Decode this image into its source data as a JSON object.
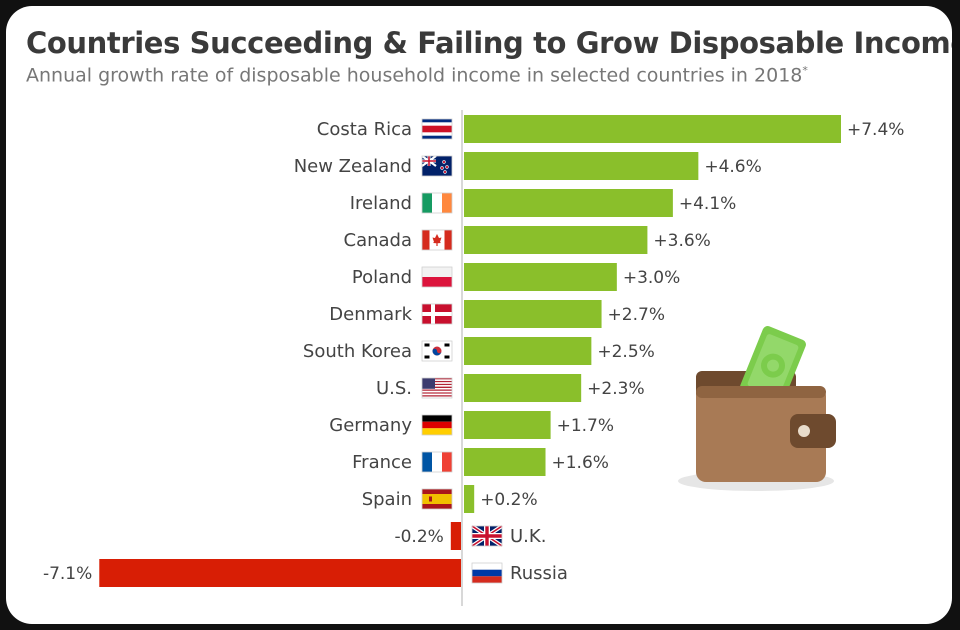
{
  "title": "Countries Succeeding & Failing to Grow Disposable Incomes",
  "subtitle": "Annual growth rate of disposable household income in selected countries in 2018",
  "subtitle_mark": "*",
  "colors": {
    "positive": "#8abf2b",
    "negative": "#d81e05",
    "axis": "#cccccc"
  },
  "chart_data": {
    "type": "bar",
    "orientation": "horizontal",
    "title": "Countries Succeeding & Failing to Grow Disposable Incomes",
    "subtitle": "Annual growth rate of disposable household income in selected countries in 2018",
    "categories": [
      "Costa Rica",
      "New Zealand",
      "Ireland",
      "Canada",
      "Poland",
      "Denmark",
      "South Korea",
      "U.S.",
      "Germany",
      "France",
      "Spain",
      "U.K.",
      "Russia"
    ],
    "values": [
      7.4,
      4.6,
      4.1,
      3.6,
      3.0,
      2.7,
      2.5,
      2.3,
      1.7,
      1.6,
      0.2,
      -0.2,
      -7.1
    ],
    "labels": [
      "+7.4%",
      "+4.6%",
      "+4.1%",
      "+3.6%",
      "+3.0%",
      "+2.7%",
      "+2.5%",
      "+2.3%",
      "+1.7%",
      "+1.6%",
      "+0.2%",
      "-0.2%",
      "-7.1%"
    ],
    "flags": [
      "costa-rica",
      "new-zealand",
      "ireland",
      "canada",
      "poland",
      "denmark",
      "south-korea",
      "usa",
      "germany",
      "france",
      "spain",
      "uk",
      "russia"
    ],
    "xlim": [
      -7.1,
      7.4
    ],
    "unit": "%",
    "grid": false,
    "legend": "none"
  }
}
